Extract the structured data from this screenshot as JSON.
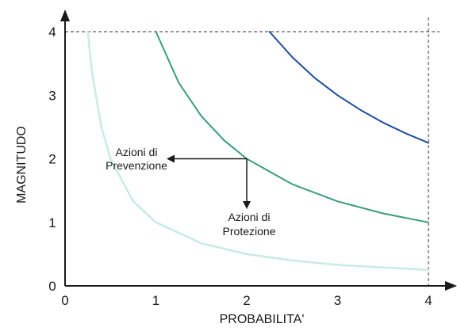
{
  "chart_data": {
    "type": "line",
    "title": "",
    "xlabel": "PROBABILITA'",
    "ylabel": "MAGNITUDO",
    "xlim": [
      0,
      4
    ],
    "ylim": [
      0,
      4
    ],
    "grid": false,
    "x_ticks": [
      "0",
      "1",
      "2",
      "3",
      "4"
    ],
    "y_ticks": [
      "0",
      "1",
      "2",
      "3",
      "4"
    ],
    "series": [
      {
        "color": "#c8ebe4",
        "x": [
          0.25,
          0.3,
          0.4,
          0.5,
          0.75,
          1,
          1.5,
          2,
          2.5,
          3,
          3.5,
          4
        ],
        "y": [
          4,
          3.33,
          2.5,
          2,
          1.33,
          1,
          0.67,
          0.5,
          0.4,
          0.33,
          0.29,
          0.25
        ]
      },
      {
        "color": "#3a9d7d",
        "x": [
          1,
          1.25,
          1.5,
          1.75,
          2,
          2.5,
          3,
          3.5,
          4
        ],
        "y": [
          4,
          3.2,
          2.67,
          2.29,
          2,
          1.6,
          1.33,
          1.14,
          1
        ]
      },
      {
        "color": "#1f4e9a",
        "x": [
          2.25,
          2.5,
          2.75,
          3,
          3.25,
          3.5,
          3.75,
          4
        ],
        "y": [
          4,
          3.6,
          3.27,
          3,
          2.77,
          2.57,
          2.4,
          2.25
        ]
      }
    ],
    "reference_lines": {
      "horizontal_at_y": 4,
      "vertical_at_x": 4,
      "style": "dashed"
    },
    "annotations": [
      {
        "lines": [
          "Azioni di",
          "Prevenzione"
        ],
        "arrow_from": [
          2,
          2
        ],
        "arrow_direction": "left"
      },
      {
        "lines": [
          "Azioni di",
          "Protezione"
        ],
        "arrow_from": [
          2,
          2
        ],
        "arrow_direction": "down"
      }
    ]
  }
}
